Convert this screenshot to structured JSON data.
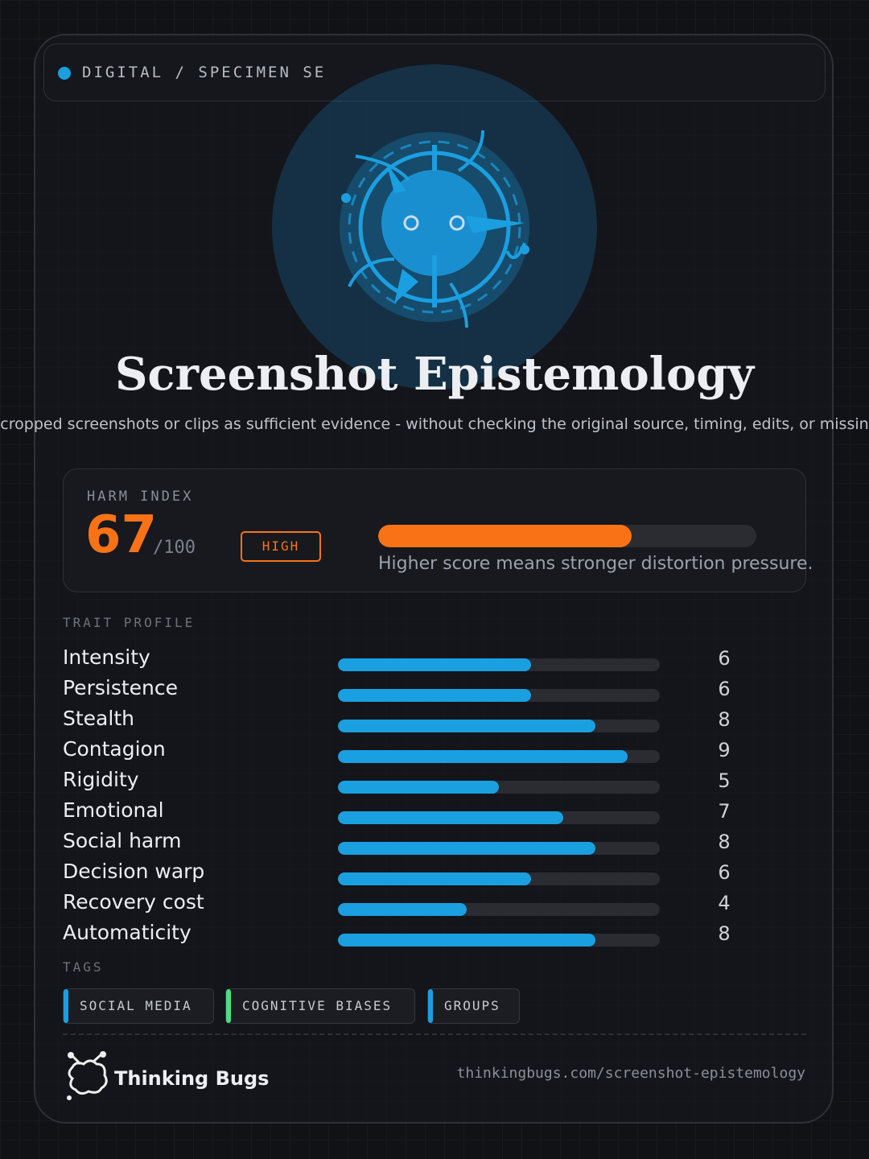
{
  "header": {
    "label": "DIGITAL / SPECIMEN SE"
  },
  "title": "Screenshot Epistemology",
  "description": "cropped screenshots or clips as sufficient evidence - without checking the original source, timing, edits, or missin",
  "harm": {
    "label": "HARM INDEX",
    "score": 67,
    "max": {
      "value": 100,
      "label": "/100"
    },
    "level": "HIGH",
    "color": "#f97316",
    "note": "Higher score means stronger distortion pressure."
  },
  "traits": {
    "label": "TRAIT PROFILE",
    "range": [
      0,
      10
    ],
    "color": "#1a9fe0",
    "items": [
      {
        "name": "Intensity",
        "value": 6
      },
      {
        "name": "Persistence",
        "value": 6
      },
      {
        "name": "Stealth",
        "value": 8
      },
      {
        "name": "Contagion",
        "value": 9
      },
      {
        "name": "Rigidity",
        "value": 5
      },
      {
        "name": "Emotional",
        "value": 7
      },
      {
        "name": "Social harm",
        "value": 8
      },
      {
        "name": "Decision warp",
        "value": 6
      },
      {
        "name": "Recovery cost",
        "value": 4
      },
      {
        "name": "Automaticity",
        "value": 8
      }
    ]
  },
  "tags": {
    "label": "TAGS",
    "items": [
      {
        "name": "SOCIAL MEDIA",
        "color": "#1a9fe0"
      },
      {
        "name": "COGNITIVE BIASES",
        "color": "#4ade80"
      },
      {
        "name": "GROUPS",
        "color": "#1a9fe0"
      }
    ]
  },
  "footer": {
    "brand": "Thinking Bugs",
    "url": "thinkingbugs.com/screenshot-epistemology"
  }
}
